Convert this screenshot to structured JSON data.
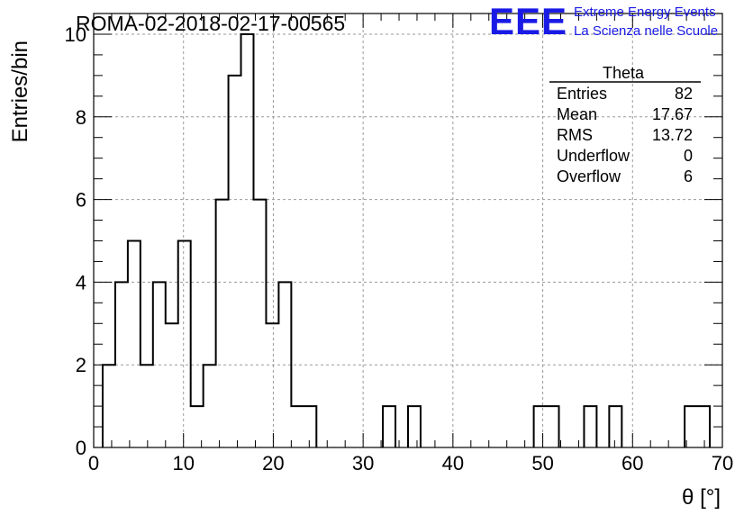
{
  "title": "ROMA-02-2018-02-17-00565",
  "logo": {
    "mark": "EEE",
    "line1": "Extreme Energy Events",
    "line2": "La Scienza nelle Scuole",
    "color": "#1a1ae6"
  },
  "stats": {
    "name": "Theta",
    "rows": [
      {
        "label": "Entries",
        "value": "82"
      },
      {
        "label": "Mean",
        "value": "17.67"
      },
      {
        "label": "RMS",
        "value": "13.72"
      },
      {
        "label": "Underflow",
        "value": "0"
      },
      {
        "label": "Overflow",
        "value": "6"
      }
    ]
  },
  "chart_data": {
    "type": "bar",
    "style": "step-histogram",
    "title": "ROMA-02-2018-02-17-00565",
    "xlabel": "θ [°]",
    "ylabel": "Entries/bin",
    "xlim": [
      0,
      70
    ],
    "ylim": [
      0,
      10.5
    ],
    "xticks": [
      0,
      10,
      20,
      30,
      40,
      50,
      60,
      70
    ],
    "yticks": [
      0,
      2,
      4,
      6,
      8,
      10
    ],
    "grid": true,
    "bins": [
      {
        "x0": 1.0,
        "x1": 2.4,
        "count": 2
      },
      {
        "x0": 2.4,
        "x1": 3.8,
        "count": 4
      },
      {
        "x0": 3.8,
        "x1": 5.2,
        "count": 5
      },
      {
        "x0": 5.2,
        "x1": 6.6,
        "count": 2
      },
      {
        "x0": 6.6,
        "x1": 8.0,
        "count": 4
      },
      {
        "x0": 8.0,
        "x1": 9.4,
        "count": 3
      },
      {
        "x0": 9.4,
        "x1": 10.8,
        "count": 5
      },
      {
        "x0": 10.8,
        "x1": 12.2,
        "count": 1
      },
      {
        "x0": 12.2,
        "x1": 13.6,
        "count": 2
      },
      {
        "x0": 13.6,
        "x1": 15.0,
        "count": 6
      },
      {
        "x0": 15.0,
        "x1": 16.4,
        "count": 9
      },
      {
        "x0": 16.4,
        "x1": 17.8,
        "count": 10
      },
      {
        "x0": 17.8,
        "x1": 19.2,
        "count": 6
      },
      {
        "x0": 19.2,
        "x1": 20.6,
        "count": 3
      },
      {
        "x0": 20.6,
        "x1": 22.0,
        "count": 4
      },
      {
        "x0": 22.0,
        "x1": 23.4,
        "count": 1
      },
      {
        "x0": 23.4,
        "x1": 24.8,
        "count": 1
      },
      {
        "x0": 32.2,
        "x1": 33.6,
        "count": 1
      },
      {
        "x0": 35.0,
        "x1": 36.4,
        "count": 1
      },
      {
        "x0": 49.0,
        "x1": 50.4,
        "count": 1
      },
      {
        "x0": 50.4,
        "x1": 51.8,
        "count": 1
      },
      {
        "x0": 54.6,
        "x1": 56.0,
        "count": 1
      },
      {
        "x0": 57.4,
        "x1": 58.8,
        "count": 1
      },
      {
        "x0": 65.8,
        "x1": 67.2,
        "count": 1
      },
      {
        "x0": 67.2,
        "x1": 68.6,
        "count": 1
      }
    ]
  }
}
